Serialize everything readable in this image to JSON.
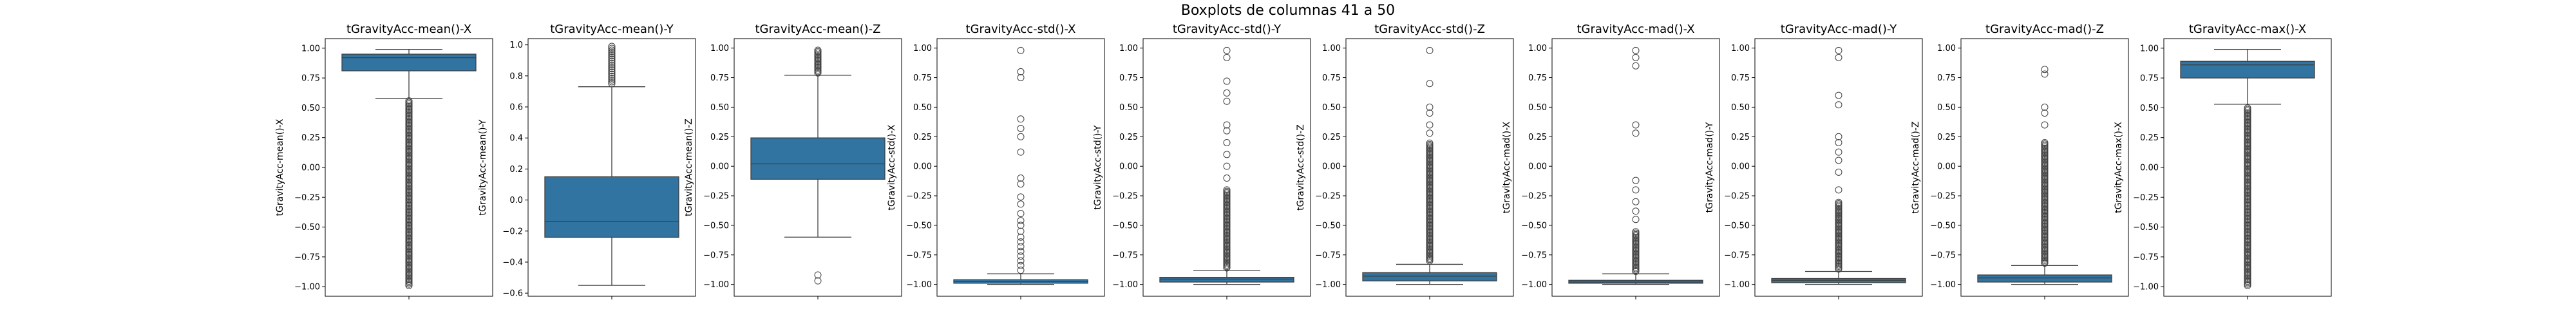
{
  "figure_title": "Boxplots de columnas 41 a 50",
  "chart_data": [
    {
      "type": "box",
      "title": "tGravityAcc-mean()-X",
      "ylabel": "tGravityAcc-mean()-X",
      "ylim": [
        -1.08,
        1.08
      ],
      "yticks": [
        -1.0,
        -0.75,
        -0.5,
        -0.25,
        0.0,
        0.25,
        0.5,
        0.75,
        1.0
      ],
      "ytick_labels": [
        "−1.00",
        "−0.75",
        "−0.50",
        "−0.25",
        "0.00",
        "0.25",
        "0.50",
        "0.75",
        "1.00"
      ],
      "whisker_low": 0.58,
      "q1": 0.81,
      "median": 0.92,
      "q3": 0.95,
      "whisker_high": 0.99,
      "outliers_low": {
        "from": -0.99,
        "to": 0.56
      },
      "outliers_high": []
    },
    {
      "type": "box",
      "title": "tGravityAcc-mean()-Y",
      "ylabel": "tGravityAcc-mean()-Y",
      "ylim": [
        -0.62,
        1.04
      ],
      "yticks": [
        -0.6,
        -0.4,
        -0.2,
        0.0,
        0.2,
        0.4,
        0.6,
        0.8,
        1.0
      ],
      "ytick_labels": [
        "−0.6",
        "−0.4",
        "−0.2",
        "0.0",
        "0.2",
        "0.4",
        "0.6",
        "0.8",
        "1.0"
      ],
      "whisker_low": -0.55,
      "q1": -0.24,
      "median": -0.14,
      "q3": 0.15,
      "whisker_high": 0.73,
      "outliers_low": [],
      "outliers_high": {
        "from": 0.75,
        "to": 0.99
      }
    },
    {
      "type": "box",
      "title": "tGravityAcc-mean()-Z",
      "ylabel": "tGravityAcc-mean()-Z",
      "ylim": [
        -1.1,
        1.08
      ],
      "yticks": [
        -1.0,
        -0.75,
        -0.5,
        -0.25,
        0.0,
        0.25,
        0.5,
        0.75,
        1.0
      ],
      "ytick_labels": [
        "−1.00",
        "−0.75",
        "−0.50",
        "−0.25",
        "0.00",
        "0.25",
        "0.50",
        "0.75",
        "1.00"
      ],
      "whisker_low": -0.6,
      "q1": -0.11,
      "median": 0.02,
      "q3": 0.24,
      "whisker_high": 0.77,
      "outliers_low": [
        -0.92,
        -0.97
      ],
      "outliers_high": {
        "from": 0.79,
        "to": 0.99
      }
    },
    {
      "type": "box",
      "title": "tGravityAcc-std()-X",
      "ylabel": "tGravityAcc-std()-X",
      "ylim": [
        -1.1,
        1.08
      ],
      "yticks": [
        -1.0,
        -0.75,
        -0.5,
        -0.25,
        0.0,
        0.25,
        0.5,
        0.75,
        1.0
      ],
      "ytick_labels": [
        "−1.00",
        "−0.75",
        "−0.50",
        "−0.25",
        "0.00",
        "0.25",
        "0.50",
        "0.75",
        "1.00"
      ],
      "whisker_low": -1.0,
      "q1": -0.99,
      "median": -0.975,
      "q3": -0.96,
      "whisker_high": -0.91,
      "outliers_low": [],
      "outliers_high": [
        -0.88,
        -0.84,
        -0.8,
        -0.76,
        -0.72,
        -0.68,
        -0.64,
        -0.6,
        -0.55,
        -0.5,
        -0.46,
        -0.4,
        -0.32,
        -0.26,
        -0.15,
        -0.1,
        0.12,
        0.25,
        0.32,
        0.4,
        0.75,
        0.8,
        0.98
      ]
    },
    {
      "type": "box",
      "title": "tGravityAcc-std()-Y",
      "ylabel": "tGravityAcc-std()-Y",
      "ylim": [
        -1.1,
        1.08
      ],
      "yticks": [
        -1.0,
        -0.75,
        -0.5,
        -0.25,
        0.0,
        0.25,
        0.5,
        0.75,
        1.0
      ],
      "ytick_labels": [
        "−1.00",
        "−0.75",
        "−0.50",
        "−0.25",
        "0.00",
        "0.25",
        "0.50",
        "0.75",
        "1.00"
      ],
      "whisker_low": -1.0,
      "q1": -0.98,
      "median": -0.955,
      "q3": -0.94,
      "whisker_high": -0.88,
      "outliers_low": [],
      "outliers_high": {
        "from": -0.86,
        "to": -0.2,
        "extra": [
          -0.1,
          0.0,
          0.1,
          0.2,
          0.3,
          0.35,
          0.55,
          0.62,
          0.72,
          0.92,
          0.98
        ]
      }
    },
    {
      "type": "box",
      "title": "tGravityAcc-std()-Z",
      "ylabel": "tGravityAcc-std()-Z",
      "ylim": [
        -1.1,
        1.08
      ],
      "yticks": [
        -1.0,
        -0.75,
        -0.5,
        -0.25,
        0.0,
        0.25,
        0.5,
        0.75,
        1.0
      ],
      "ytick_labels": [
        "−1.00",
        "−0.75",
        "−0.50",
        "−0.25",
        "0.00",
        "0.25",
        "0.50",
        "0.75",
        "1.00"
      ],
      "whisker_low": -1.0,
      "q1": -0.97,
      "median": -0.93,
      "q3": -0.9,
      "whisker_high": -0.83,
      "outliers_low": [],
      "outliers_high": {
        "from": -0.8,
        "to": 0.2,
        "extra": [
          0.28,
          0.35,
          0.45,
          0.5,
          0.7,
          0.98
        ]
      }
    },
    {
      "type": "box",
      "title": "tGravityAcc-mad()-X",
      "ylabel": "tGravityAcc-mad()-X",
      "ylim": [
        -1.1,
        1.08
      ],
      "yticks": [
        -1.0,
        -0.75,
        -0.5,
        -0.25,
        0.0,
        0.25,
        0.5,
        0.75,
        1.0
      ],
      "ytick_labels": [
        "−1.00",
        "−0.75",
        "−0.50",
        "−0.25",
        "0.00",
        "0.25",
        "0.50",
        "0.75",
        "1.00"
      ],
      "whisker_low": -1.0,
      "q1": -0.99,
      "median": -0.98,
      "q3": -0.965,
      "whisker_high": -0.91,
      "outliers_low": [],
      "outliers_high": {
        "from": -0.89,
        "to": -0.55,
        "extra": [
          -0.45,
          -0.38,
          -0.3,
          -0.2,
          -0.12,
          0.28,
          0.35,
          0.85,
          0.92,
          0.98
        ]
      }
    },
    {
      "type": "box",
      "title": "tGravityAcc-mad()-Y",
      "ylabel": "tGravityAcc-mad()-Y",
      "ylim": [
        -1.1,
        1.08
      ],
      "yticks": [
        -1.0,
        -0.75,
        -0.5,
        -0.25,
        0.0,
        0.25,
        0.5,
        0.75,
        1.0
      ],
      "ytick_labels": [
        "−1.00",
        "−0.75",
        "−0.50",
        "−0.25",
        "0.00",
        "0.25",
        "0.50",
        "0.75",
        "1.00"
      ],
      "whisker_low": -1.0,
      "q1": -0.985,
      "median": -0.965,
      "q3": -0.95,
      "whisker_high": -0.89,
      "outliers_low": [],
      "outliers_high": {
        "from": -0.87,
        "to": -0.3,
        "extra": [
          -0.2,
          -0.05,
          0.05,
          0.12,
          0.2,
          0.25,
          0.52,
          0.6,
          0.92,
          0.98
        ]
      }
    },
    {
      "type": "box",
      "title": "tGravityAcc-mad()-Z",
      "ylabel": "tGravityAcc-mad()-Z",
      "ylim": [
        -1.1,
        1.08
      ],
      "yticks": [
        -1.0,
        -0.75,
        -0.5,
        -0.25,
        0.0,
        0.25,
        0.5,
        0.75,
        1.0
      ],
      "ytick_labels": [
        "−1.00",
        "−0.75",
        "−0.50",
        "−0.25",
        "0.00",
        "0.25",
        "0.50",
        "0.75",
        "1.00"
      ],
      "whisker_low": -1.0,
      "q1": -0.98,
      "median": -0.945,
      "q3": -0.92,
      "whisker_high": -0.84,
      "outliers_low": [],
      "outliers_high": {
        "from": -0.82,
        "to": 0.2,
        "extra": [
          0.35,
          0.45,
          0.5,
          0.78,
          0.82
        ]
      }
    },
    {
      "type": "box",
      "title": "tGravityAcc-max()-X",
      "ylabel": "tGravityAcc-max()-X",
      "ylim": [
        -1.08,
        1.08
      ],
      "yticks": [
        -1.0,
        -0.75,
        -0.5,
        -0.25,
        0.0,
        0.25,
        0.5,
        0.75,
        1.0
      ],
      "ytick_labels": [
        "−1.00",
        "−0.75",
        "−0.50",
        "−0.25",
        "0.00",
        "0.25",
        "0.50",
        "0.75",
        "1.00"
      ],
      "whisker_low": 0.53,
      "q1": 0.75,
      "median": 0.86,
      "q3": 0.89,
      "whisker_high": 0.99,
      "outliers_low": {
        "from": -0.99,
        "to": 0.5
      },
      "outliers_high": []
    }
  ]
}
